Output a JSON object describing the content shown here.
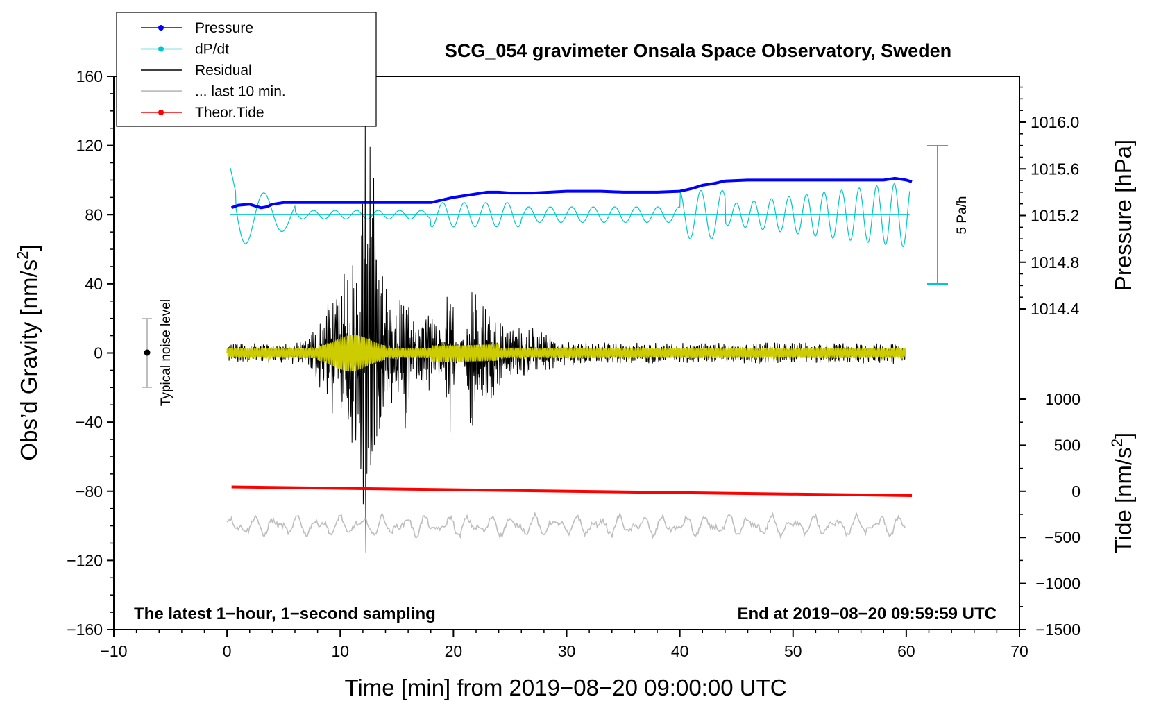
{
  "chart_data": {
    "type": "line",
    "title": "SCG_054 gravimeter Onsala Space Observatory, Sweden",
    "xlabel": "Time [min] from 2019−08−20 09:00:00 UTC",
    "ylabel_left": "Obs’d Gravity [nm/s",
    "ylabel_left_sup": "2",
    "ylabel_left_close": "]",
    "ylabel_right_top": "Pressure [hPa]",
    "ylabel_right_bottom": "Tide [nm/s",
    "ylabel_right_bottom_sup": "2",
    "ylabel_right_bottom_close": "]",
    "xlim": [
      -10,
      70
    ],
    "ylim_left": [
      -160,
      160
    ],
    "x_ticks": [
      "−10",
      "0",
      "10",
      "20",
      "30",
      "40",
      "50",
      "60",
      "70"
    ],
    "x_tick_values": [
      -10,
      0,
      10,
      20,
      30,
      40,
      50,
      60,
      70
    ],
    "y_left_ticks": [
      "160",
      "120",
      "80",
      "40",
      "0",
      "−40",
      "−80",
      "−120",
      "−160"
    ],
    "y_left_tick_values": [
      160,
      120,
      80,
      40,
      0,
      -40,
      -80,
      -120,
      -160
    ],
    "pressure_ticks": [
      "1016.0",
      "1015.6",
      "1015.2",
      "1014.8",
      "1014.4"
    ],
    "pressure_tick_values": [
      1016.0,
      1015.6,
      1015.2,
      1014.8,
      1014.4
    ],
    "tide_ticks": [
      "1000",
      "500",
      "0",
      "−500",
      "−1000",
      "−1500"
    ],
    "tide_tick_values": [
      1000,
      500,
      0,
      -500,
      -1000,
      -1500
    ],
    "annotations": {
      "left_note": "The latest 1−hour, 1−second sampling",
      "right_note": "End at 2019−08−20 09:59:59 UTC",
      "noise_label": "Typical noise level",
      "scale_label": "5 Pa/h"
    },
    "legend": [
      {
        "label": "Pressure",
        "color": "#0000ff",
        "marker": true
      },
      {
        "label": "dP/dt",
        "color": "#00c8c8",
        "marker": true
      },
      {
        "label": "Residual",
        "color": "#000000",
        "marker": false
      },
      {
        "label": "... last 10 min.",
        "color": "#bebebe",
        "marker": false
      },
      {
        "label": "Theor.Tide",
        "color": "#ff0000",
        "marker": true
      }
    ],
    "series": [
      {
        "name": "Pressure",
        "color": "#0000ff",
        "x": [
          0.4,
          1,
          2,
          2.5,
          3,
          3.5,
          4,
          5,
          6,
          7,
          10,
          14,
          17,
          18,
          19,
          20,
          21,
          22,
          23,
          24,
          25,
          27,
          30,
          33,
          35,
          38,
          40,
          41,
          42,
          43,
          44,
          46,
          48,
          50,
          52,
          54,
          56,
          58,
          59,
          60,
          60.5
        ],
        "y": [
          84,
          85.5,
          86,
          85,
          84,
          84.5,
          86,
          87,
          87,
          87,
          87,
          87,
          87,
          87,
          88.5,
          90,
          91,
          92,
          93,
          93,
          92.5,
          92.5,
          93.5,
          93.5,
          93,
          93,
          93.5,
          95,
          97,
          98,
          99.5,
          100,
          100,
          100,
          100,
          100,
          100,
          100,
          101,
          100,
          99
        ]
      },
      {
        "name": "Theor.Tide",
        "color": "#ff0000",
        "x": [
          0.4,
          60.5
        ],
        "y": [
          -77.5,
          -82.5
        ]
      },
      {
        "name": "dP/dt baseline",
        "color": "#00c8c8",
        "x": [
          0.3,
          60.3
        ],
        "y": [
          80,
          80
        ]
      }
    ],
    "colors": {
      "residual": "#000000",
      "residual_smooth": "#cccc00",
      "last10": "#bebebe",
      "noise_bar": "#bebebe",
      "dpdt": "#00c8c8"
    }
  }
}
